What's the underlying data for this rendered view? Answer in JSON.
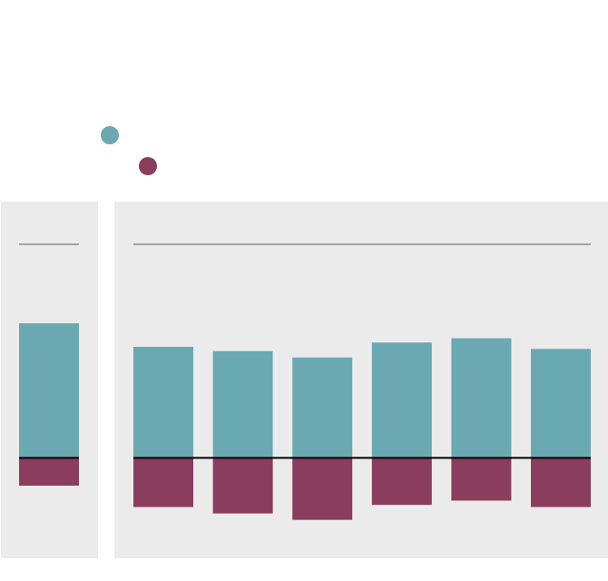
{
  "chart_data": [
    {
      "type": "bar",
      "stacked": true,
      "ylim": [
        -47,
        120
      ],
      "reference_line": 100,
      "series": [
        {
          "color": "#6aa8b2",
          "values": [
            63
          ]
        },
        {
          "color": "#8b3d5e",
          "values": [
            -13
          ]
        }
      ]
    },
    {
      "type": "bar",
      "stacked": true,
      "ylim": [
        -47,
        120
      ],
      "reference_line": 100,
      "series": [
        {
          "color": "#6aa8b2",
          "values": [
            52,
            50,
            47,
            54,
            56,
            51
          ]
        },
        {
          "color": "#8b3d5e",
          "values": [
            -23,
            -26,
            -29,
            -22,
            -20,
            -23
          ]
        }
      ]
    }
  ]
}
